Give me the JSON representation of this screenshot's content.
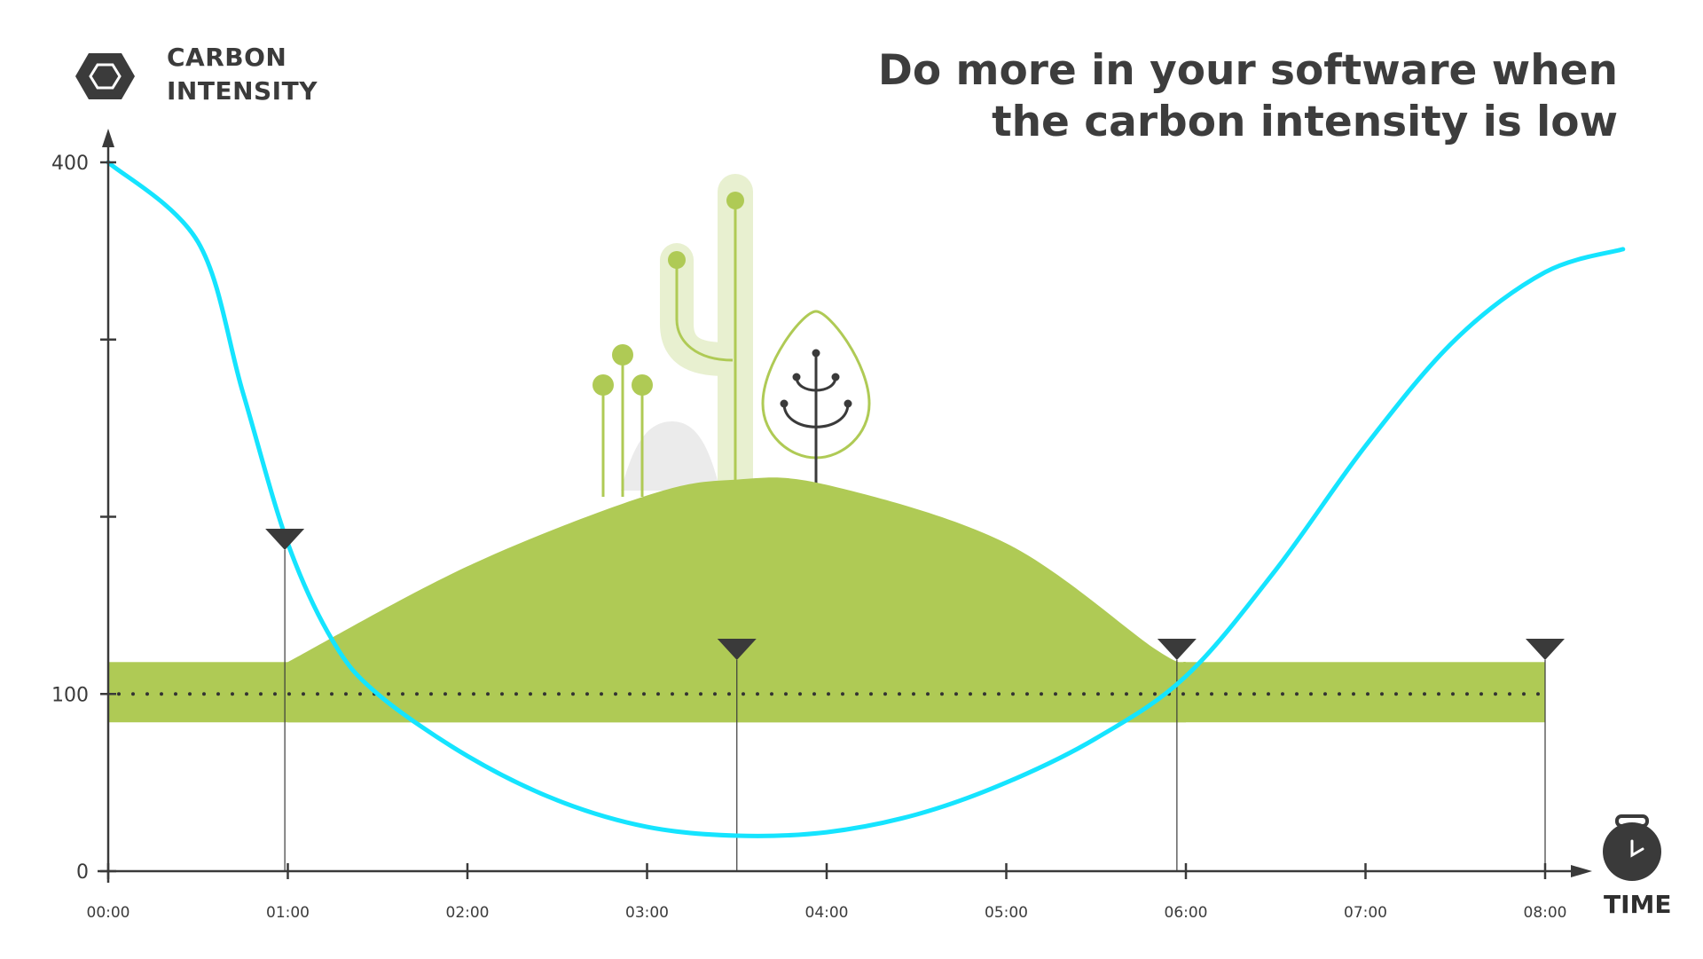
{
  "heading": {
    "line1": "Do more in your software when",
    "line2": "the carbon intensity is low"
  },
  "icons": {
    "y_axis": "hexagon-icon",
    "x_axis": "stopwatch-icon"
  },
  "colors": {
    "intensity_curve": "#15e4ff",
    "green_zone": "#afca55",
    "axis": "#3a3a3a",
    "heading": "#3d3d3d"
  },
  "chart_data": {
    "type": "line",
    "title": "",
    "ylabel": [
      "CARBON",
      "INTENSITY"
    ],
    "xlabel": "TIME",
    "x_ticks": [
      "00:00",
      "01:00",
      "02:00",
      "03:00",
      "04:00",
      "05:00",
      "06:00",
      "07:00",
      "08:00"
    ],
    "y_ticks": [
      0,
      100,
      400
    ],
    "y_minor_ticks": [
      200,
      300
    ],
    "xlim": [
      "00:00",
      "08:00"
    ],
    "ylim": [
      0,
      400
    ],
    "grid": false,
    "series": [
      {
        "x": [
          "00:00",
          "00:30",
          "00:45",
          "01:00",
          "01:15",
          "01:30",
          "02:00",
          "02:30",
          "03:00",
          "03:30",
          "04:00",
          "04:30",
          "05:00",
          "05:30",
          "06:00",
          "06:30",
          "07:00",
          "07:30",
          "08:00",
          "08:26"
        ],
        "values": [
          400,
          355,
          270,
          185,
          130,
          100,
          65,
          40,
          25,
          20,
          22,
          32,
          50,
          75,
          110,
          170,
          240,
          300,
          338,
          351
        ]
      }
    ],
    "threshold": {
      "value": 100,
      "style": "dotted"
    },
    "green_band": {
      "x_start": "00:00",
      "x_end": "08:00",
      "y_min": 84,
      "y_max": 118
    },
    "green_hill": [
      {
        "x": "01:00",
        "y": 118
      },
      {
        "x": "02:00",
        "y": 172
      },
      {
        "x": "03:00",
        "y": 212
      },
      {
        "x": "03:30",
        "y": 221
      },
      {
        "x": "04:00",
        "y": 218
      },
      {
        "x": "05:00",
        "y": 185
      },
      {
        "x": "05:50",
        "y": 125
      },
      {
        "x": "06:00",
        "y": 118
      }
    ],
    "markers": [
      "00:59",
      "03:30",
      "05:57",
      "08:00"
    ]
  }
}
